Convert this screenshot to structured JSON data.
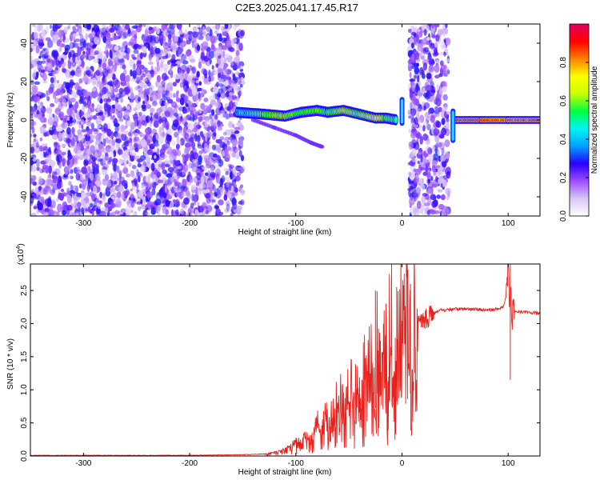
{
  "figure_title": "C2E3.2025.041.17.45.R17",
  "chart_data": [
    {
      "type": "heatmap",
      "title": "C2E3.2025.041.17.45.R17",
      "xlabel": "Height of straight line (km)",
      "ylabel": "Frequency (Hz)",
      "xlim": [
        -350,
        130
      ],
      "ylim": [
        -50,
        50
      ],
      "xticks": [
        -300,
        -200,
        -100,
        0,
        100
      ],
      "xtick_labels": [
        "-300",
        "-200",
        "-100",
        "0",
        "100"
      ],
      "yticks": [
        -40,
        -20,
        0,
        20,
        40
      ],
      "ytick_labels": [
        "-40",
        "-20",
        "0",
        "20",
        "40"
      ],
      "colorbar": {
        "label": "Normalized spectral amplitude",
        "range": [
          0,
          1
        ],
        "ticks": [
          0.0,
          0.2,
          0.4,
          0.6,
          0.8
        ],
        "tick_labels": [
          "0.0",
          "0.2",
          "0.4",
          "0.6",
          "0.8"
        ],
        "colormap": [
          "#ffffff",
          "#d9c6f5",
          "#9b4dff",
          "#2a00ff",
          "#00a0ff",
          "#00f5f5",
          "#00ff40",
          "#c8ff00",
          "#ffff00",
          "#ff8000",
          "#ff0000",
          "#e00060"
        ]
      },
      "noise_regions": [
        {
          "x_start": -350,
          "x_end": -150,
          "f_min": -50,
          "f_max": 50,
          "level": 0.15
        },
        {
          "x_start": 7,
          "x_end": 44,
          "f_min": -50,
          "f_max": 50,
          "level": 0.15
        }
      ],
      "signal_band": [
        {
          "x": -155,
          "f": 4,
          "amplitude": 0.35
        },
        {
          "x": -130,
          "f": 3,
          "amplitude": 0.6
        },
        {
          "x": -110,
          "f": 2,
          "amplitude": 0.65
        },
        {
          "x": -95,
          "f": 4,
          "amplitude": 0.55
        },
        {
          "x": -80,
          "f": 5,
          "amplitude": 0.6
        },
        {
          "x": -70,
          "f": 4,
          "amplitude": 0.55
        },
        {
          "x": -55,
          "f": 5,
          "amplitude": 0.65
        },
        {
          "x": -40,
          "f": 3,
          "amplitude": 0.55
        },
        {
          "x": -25,
          "f": 1,
          "amplitude": 0.7
        },
        {
          "x": -15,
          "f": 1,
          "amplitude": 0.6
        },
        {
          "x": -5,
          "f": 0,
          "amplitude": 0.5
        },
        {
          "x": 50,
          "f": 0,
          "amplitude": 0.95
        },
        {
          "x": 75,
          "f": 0,
          "amplitude": 0.95
        },
        {
          "x": 100,
          "f": 0,
          "amplitude": 0.9
        },
        {
          "x": 130,
          "f": 0,
          "amplitude": 0.95
        }
      ],
      "spurs": [
        {
          "x": 0,
          "f_min": -3,
          "f_max": 12
        },
        {
          "x": 48,
          "f_min": -12,
          "f_max": 6
        }
      ],
      "secondary_trace": [
        {
          "x": -140,
          "f": 0
        },
        {
          "x": -120,
          "f": -4
        },
        {
          "x": -100,
          "f": -8
        },
        {
          "x": -85,
          "f": -12
        },
        {
          "x": -75,
          "f": -14
        }
      ]
    },
    {
      "type": "line",
      "title": "",
      "xlabel": "Height of straight line (km)",
      "ylabel": "SNR (10 * v/v)",
      "y_multiplier": "(x10",
      "y_multiplier_exponent": "4",
      "y_multiplier_close": ")",
      "xlim": [
        -350,
        130
      ],
      "ylim": [
        0.0,
        2.9
      ],
      "xticks": [
        -300,
        -200,
        -100,
        0,
        100
      ],
      "xtick_labels": [
        "-300",
        "-200",
        "-100",
        "0",
        "100"
      ],
      "yticks": [
        0.0,
        0.5,
        1.0,
        1.5,
        2.0,
        2.5
      ],
      "ytick_labels": [
        "0.0",
        "0.5",
        "1.0",
        "1.5",
        "2.0",
        "2.5"
      ],
      "line_color": "#e8211c",
      "x": [
        -350,
        -300,
        -250,
        -200,
        -150,
        -130,
        -115,
        -105,
        -100,
        -95,
        -90,
        -85,
        -80,
        -75,
        -70,
        -65,
        -60,
        -55,
        -50,
        -45,
        -40,
        -35,
        -30,
        -25,
        -20,
        -15,
        -10,
        -5,
        0,
        5,
        10,
        15,
        20,
        25,
        30,
        35,
        40,
        50,
        60,
        70,
        80,
        90,
        95,
        98,
        100,
        102,
        104,
        106,
        110,
        115,
        120,
        130
      ],
      "y": [
        0.01,
        0.01,
        0.01,
        0.01,
        0.02,
        0.03,
        0.08,
        0.15,
        0.25,
        0.2,
        0.4,
        0.3,
        0.55,
        0.45,
        0.7,
        0.6,
        0.9,
        0.85,
        1.0,
        1.05,
        1.15,
        1.2,
        1.4,
        1.45,
        1.6,
        1.5,
        1.75,
        1.65,
        1.8,
        1.85,
        1.9,
        2.0,
        2.05,
        2.1,
        2.15,
        2.2,
        2.2,
        2.22,
        2.22,
        2.22,
        2.2,
        2.22,
        2.25,
        2.4,
        2.8,
        2.3,
        2.2,
        2.18,
        2.18,
        2.17,
        2.17,
        2.15
      ],
      "spike_x": [
        -25,
        -15,
        -5,
        8,
        102
      ],
      "spike_y": [
        2.5,
        2.3,
        2.55,
        2.6,
        2.9
      ]
    }
  ]
}
